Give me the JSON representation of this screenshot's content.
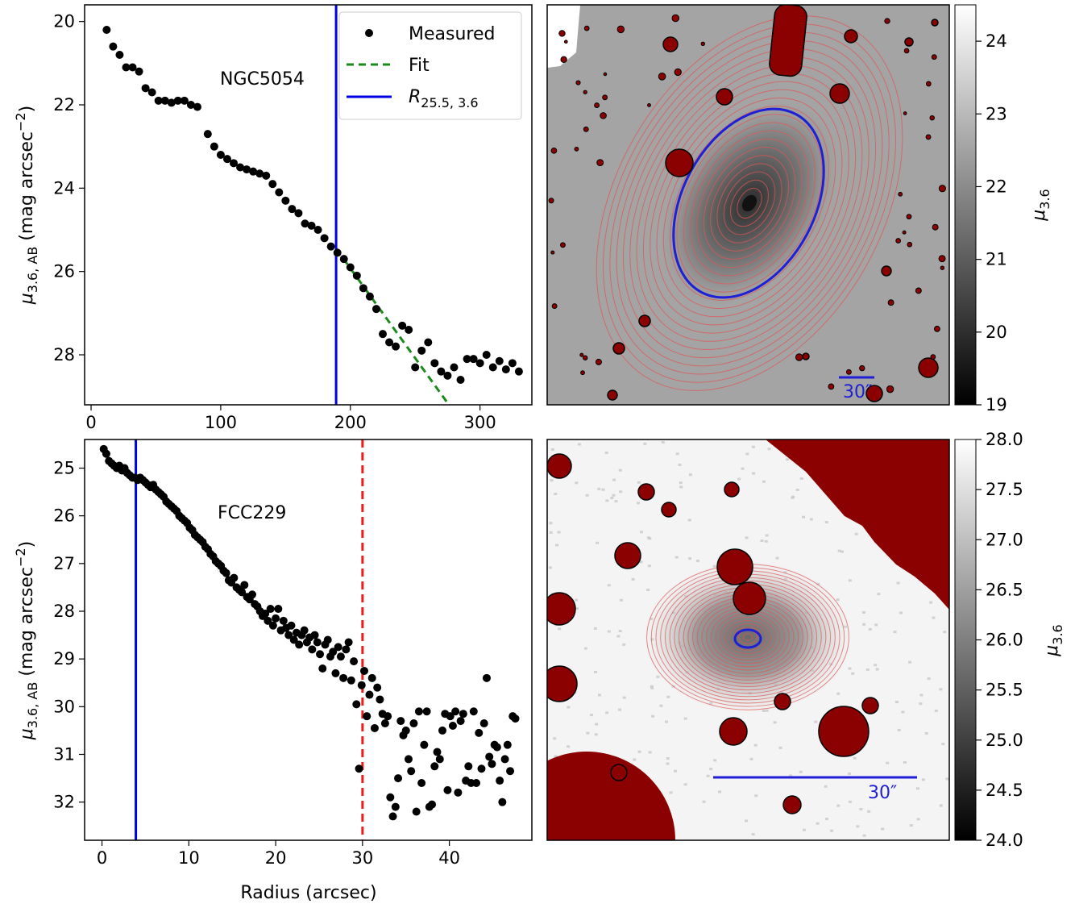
{
  "chart_data": [
    {
      "type": "scatter",
      "panel": "top-left",
      "annotation": "NGC5054",
      "ylabel_main": "μ",
      "ylabel_sub": "3.6, AB",
      "ylabel_rest": " (mag arcsec",
      "ylabel_sup": "−2",
      "ylabel_close": ")",
      "xlim": [
        -5,
        340
      ],
      "ylim": [
        29.2,
        19.6
      ],
      "xticks": [
        "0",
        "100",
        "200",
        "300"
      ],
      "xtick_values": [
        0,
        100,
        200,
        300
      ],
      "yticks": [
        "20",
        "22",
        "24",
        "26",
        "28"
      ],
      "ytick_values": [
        20,
        22,
        24,
        26,
        28
      ],
      "legend": {
        "position": "top-right",
        "measured_label": "Measured",
        "fit_label": "Fit",
        "radius_label_main": "R",
        "radius_label_sub": "25.5, 3.6"
      },
      "vline_blue": 189,
      "fit_line": {
        "x": [
          189,
          276
        ],
        "y": [
          25.45,
          29.2
        ]
      },
      "series": [
        {
          "name": "Measured",
          "x": [
            12,
            17,
            22,
            27,
            32,
            37,
            42,
            47,
            52,
            57,
            62,
            67,
            72,
            77,
            82,
            90,
            95,
            100,
            105,
            110,
            115,
            120,
            125,
            130,
            135,
            140,
            145,
            150,
            155,
            160,
            165,
            170,
            175,
            180,
            185,
            190,
            195,
            200,
            205,
            210,
            215,
            220,
            225,
            230,
            235,
            240,
            245,
            250,
            255,
            260,
            265,
            270,
            275,
            280,
            285,
            290,
            295,
            300,
            305,
            310,
            315,
            320,
            325,
            330
          ],
          "y": [
            20.2,
            20.6,
            20.8,
            21.1,
            21.1,
            21.2,
            21.6,
            21.7,
            21.9,
            21.9,
            21.95,
            21.9,
            21.9,
            22,
            22.05,
            22.7,
            23,
            23.2,
            23.3,
            23.4,
            23.5,
            23.55,
            23.6,
            23.65,
            23.7,
            23.9,
            24.1,
            24.3,
            24.5,
            24.6,
            24.85,
            24.9,
            25,
            25.2,
            25.4,
            25.55,
            25.7,
            25.9,
            26.1,
            26.4,
            26.6,
            26.9,
            27.5,
            27.7,
            27.8,
            27.3,
            27.4,
            28.3,
            27.9,
            27.7,
            28.2,
            28.4,
            28.5,
            28.3,
            28.6,
            28.1,
            28.1,
            28.2,
            28,
            28.3,
            28.15,
            28.35,
            28.2,
            28.4
          ]
        }
      ]
    },
    {
      "type": "scatter",
      "panel": "bottom-left",
      "annotation": "FCC229",
      "ylabel_main": "μ",
      "ylabel_sub": "3.6, AB",
      "ylabel_rest": " (mag arcsec",
      "ylabel_sup": "−2",
      "ylabel_close": ")",
      "xlabel": "Radius (arcsec)",
      "xlim": [
        -2,
        49.5
      ],
      "ylim": [
        32.8,
        24.4
      ],
      "xticks": [
        "0",
        "10",
        "20",
        "30",
        "40"
      ],
      "xtick_values": [
        0,
        10,
        20,
        30,
        40
      ],
      "yticks": [
        "25",
        "26",
        "27",
        "28",
        "29",
        "30",
        "31",
        "32"
      ],
      "ytick_values": [
        25,
        26,
        27,
        28,
        29,
        30,
        31,
        32
      ],
      "vline_blue": 3.9,
      "vline_red_dashed": 30,
      "series": [
        {
          "name": "Measured",
          "x": [
            0.2,
            0.5,
            0.8,
            1.1,
            1.4,
            1.7,
            2,
            2.3,
            2.6,
            2.9,
            3.2,
            3.5,
            3.8,
            4.1,
            4.4,
            4.7,
            5,
            5.3,
            5.6,
            5.9,
            6.2,
            6.5,
            6.8,
            7.1,
            7.4,
            7.7,
            8,
            8.3,
            8.6,
            8.9,
            9.2,
            9.5,
            9.8,
            10.1,
            10.4,
            10.7,
            11,
            11.3,
            11.6,
            11.9,
            12.2,
            12.5,
            12.8,
            13.1,
            13.4,
            13.7,
            14,
            14.3,
            14.6,
            14.9,
            15.2,
            15.5,
            15.8,
            16.1,
            16.4,
            16.7,
            17,
            17.3,
            17.6,
            17.9,
            18.2,
            18.5,
            18.8,
            19.1,
            19.4,
            19.7,
            20,
            20.3,
            20.6,
            20.9,
            21.2,
            21.5,
            21.8,
            22.1,
            22.4,
            22.7,
            23,
            23.3,
            23.6,
            23.9,
            24.2,
            24.5,
            24.8,
            25.1,
            25.4,
            25.7,
            26,
            26.3,
            26.6,
            26.9,
            27.2,
            27.5,
            27.8,
            28.1,
            28.4,
            28.7,
            29,
            29.3,
            29.6,
            29.9,
            30.2,
            30.5,
            30.8,
            31.1,
            31.4,
            31.7,
            32,
            32.3,
            32.6,
            32.9,
            33.2,
            33.5,
            33.8,
            34.1,
            34.4,
            34.7,
            35,
            35.3,
            35.6,
            35.9,
            36.2,
            36.5,
            36.8,
            37.1,
            37.4,
            37.7,
            38,
            38.3,
            38.6,
            38.9,
            39.2,
            39.5,
            39.8,
            40.1,
            40.4,
            40.7,
            41,
            41.3,
            41.6,
            41.9,
            42.2,
            42.5,
            42.8,
            43.1,
            43.4,
            43.7,
            44,
            44.3,
            44.6,
            44.9,
            45.2,
            45.5,
            45.8,
            46.1,
            46.4,
            46.7,
            47,
            47.3,
            47.6
          ],
          "y": [
            24.6,
            24.7,
            24.85,
            24.9,
            24.95,
            25,
            24.95,
            25.05,
            25,
            25.1,
            25.15,
            25.2,
            25.2,
            25.25,
            25.2,
            25.25,
            25.3,
            25.35,
            25.4,
            25.35,
            25.45,
            25.5,
            25.55,
            25.6,
            25.7,
            25.75,
            25.8,
            25.85,
            25.9,
            26,
            26.05,
            26.1,
            26.15,
            26.25,
            26.3,
            26.4,
            26.45,
            26.5,
            26.55,
            26.65,
            26.7,
            26.8,
            26.85,
            26.95,
            27,
            27.05,
            27.15,
            27.2,
            27.35,
            27.4,
            27.3,
            27.5,
            27.55,
            27.6,
            27.45,
            27.7,
            27.75,
            27.65,
            27.85,
            27.9,
            28,
            28.1,
            28.05,
            28.2,
            27.95,
            28.3,
            28.15,
            27.95,
            28.4,
            28.2,
            28.35,
            28.5,
            28.3,
            28.6,
            28.45,
            28.7,
            28.5,
            28.4,
            28.65,
            28.55,
            28.8,
            28.5,
            28.65,
            28.9,
            29.2,
            28.7,
            28.6,
            28.95,
            28.85,
            29.3,
            28.75,
            28.95,
            29.4,
            28.8,
            28.65,
            29.45,
            29.05,
            29.95,
            31.3,
            29.55,
            29.25,
            30.2,
            29.75,
            29.4,
            30.45,
            29.6,
            29.85,
            30.15,
            30.35,
            30.2,
            31.9,
            32.3,
            32.1,
            31.5,
            30.3,
            30.6,
            30.5,
            31.1,
            31.35,
            30.35,
            32.2,
            30.1,
            31.6,
            30.8,
            30.1,
            32.1,
            32.05,
            31.25,
            30.95,
            31.1,
            30.5,
            30.15,
            31.75,
            30.2,
            30.4,
            30.1,
            31.8,
            30.3,
            30.15,
            31.55,
            31.25,
            31.6,
            30.1,
            31.6,
            30.55,
            31.3,
            30.35,
            29.4,
            31.05,
            31.2,
            30.8,
            30.85,
            31.55,
            32,
            31.1,
            30.8,
            31.35,
            30.2,
            30.25
          ]
        }
      ]
    },
    {
      "type": "heatmap",
      "panel": "top-right",
      "colorbar_label_main": "μ",
      "colorbar_label_sub": "3.6",
      "colorbar_range": [
        19,
        24.5
      ],
      "colorbar_ticks": [
        "19",
        "20",
        "21",
        "22",
        "23",
        "24"
      ],
      "colorbar_tick_values": [
        19,
        20,
        21,
        22,
        23,
        24
      ],
      "scalebar_label": "30″"
    },
    {
      "type": "heatmap",
      "panel": "bottom-right",
      "colorbar_label_main": "μ",
      "colorbar_label_sub": "3.6",
      "colorbar_range": [
        24,
        28
      ],
      "colorbar_ticks": [
        "24.0",
        "24.5",
        "25.0",
        "25.5",
        "26.0",
        "26.5",
        "27.0",
        "27.5",
        "28.0"
      ],
      "colorbar_tick_values": [
        24,
        24.5,
        25,
        25.5,
        26,
        26.5,
        27,
        27.5,
        28
      ],
      "scalebar_label": "30″"
    }
  ]
}
